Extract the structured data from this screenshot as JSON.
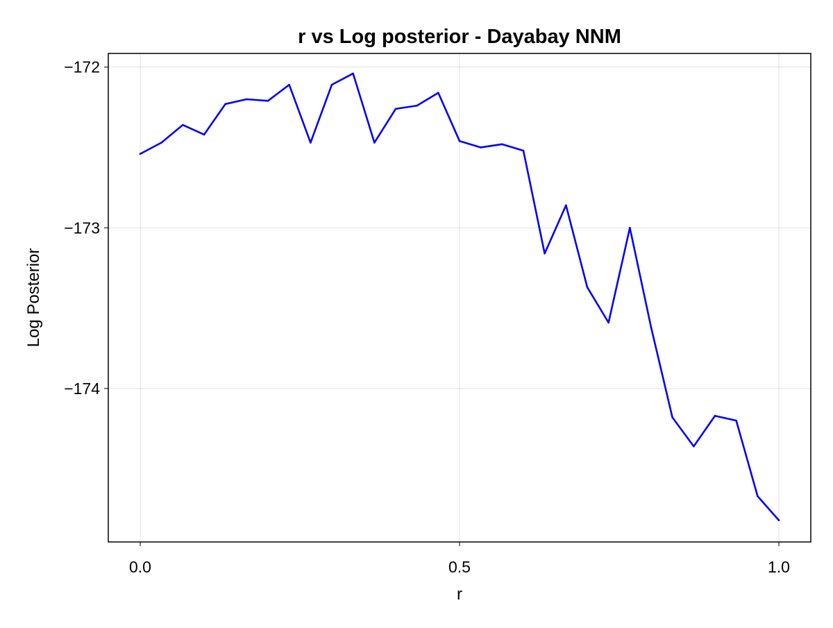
{
  "chart_data": {
    "type": "line",
    "title": "r vs Log posterior - Dayabay NNM",
    "xlabel": "r",
    "ylabel": "Log Posterior",
    "xlim": [
      -0.05,
      1.05
    ],
    "ylim": [
      -174.955,
      -171.915
    ],
    "xticks": [
      0.0,
      0.5,
      1.0
    ],
    "xtick_labels": [
      "0.0",
      "0.5",
      "1.0"
    ],
    "yticks": [
      -172,
      -173,
      -174
    ],
    "ytick_labels": [
      "−172",
      "−173",
      "−174"
    ],
    "grid": true,
    "legend": "none",
    "series": [
      {
        "color": "#0000ff",
        "x": [
          0.0,
          0.0333,
          0.0667,
          0.1,
          0.1333,
          0.1667,
          0.2,
          0.2333,
          0.2667,
          0.3,
          0.3333,
          0.3667,
          0.4,
          0.4333,
          0.4667,
          0.5,
          0.5333,
          0.5667,
          0.6,
          0.6333,
          0.6667,
          0.7,
          0.7333,
          0.7667,
          0.8,
          0.8333,
          0.8667,
          0.9,
          0.9333,
          0.9667,
          1.0
        ],
        "y": [
          -172.54,
          -172.47,
          -172.36,
          -172.42,
          -172.23,
          -172.2,
          -172.21,
          -172.11,
          -172.47,
          -172.11,
          -172.04,
          -172.47,
          -172.26,
          -172.24,
          -172.16,
          -172.46,
          -172.5,
          -172.48,
          -172.52,
          -173.16,
          -172.86,
          -173.37,
          -173.59,
          -173.0,
          -173.62,
          -174.18,
          -174.36,
          -174.17,
          -174.2,
          -174.67,
          -174.82
        ]
      }
    ]
  }
}
